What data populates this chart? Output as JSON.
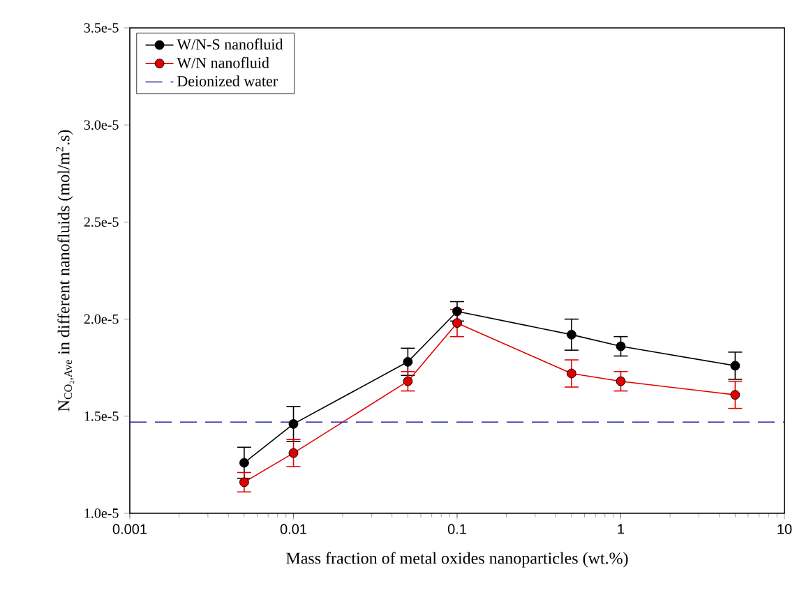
{
  "chart_data": {
    "type": "line",
    "xlabel": "Mass fraction of metal oxides nanoparticles (wt.%)",
    "ylabel": "N$_{CO₂,Ave}$ in different nanofluids (mol/m$^{2}$.s)",
    "log": "x",
    "xlim": [
      0.001,
      10
    ],
    "xticks": [
      0.001,
      0.01,
      0.1,
      1,
      10
    ],
    "ylim": [
      1e-05,
      3.5e-05
    ],
    "yticks": [
      {
        "value": 1e-05,
        "label": "1.0e-5"
      },
      {
        "value": 1.5e-05,
        "label": "1.5e-5"
      },
      {
        "value": 2e-05,
        "label": "2.0e-5"
      },
      {
        "value": 2.5e-05,
        "label": "2.5e-5"
      },
      {
        "value": 3e-05,
        "label": "3.0e-5"
      },
      {
        "value": 3.5e-05,
        "label": "3.5e-5"
      }
    ],
    "x": [
      0.005,
      0.01,
      0.05,
      0.1,
      0.5,
      1,
      5
    ],
    "grid": false,
    "legend": "top left",
    "marker": "circle",
    "series": [
      {
        "name": "W/N-S nanofluid",
        "color": "#000000",
        "values": [
          1.26e-05,
          1.46e-05,
          1.78e-05,
          2.04e-05,
          1.92e-05,
          1.86e-05,
          1.76e-05
        ],
        "errors": [
          8e-07,
          9e-07,
          7e-07,
          5e-07,
          8e-07,
          5e-07,
          7e-07
        ]
      },
      {
        "name": "W/N nanofluid",
        "color": "#e00000",
        "values": [
          1.16e-05,
          1.31e-05,
          1.68e-05,
          1.98e-05,
          1.72e-05,
          1.68e-05,
          1.61e-05
        ],
        "errors": [
          5e-07,
          7e-07,
          5e-07,
          7e-07,
          7e-07,
          5e-07,
          7e-07
        ]
      },
      {
        "name": "Deionized water",
        "color": "#2a2aa8",
        "x": [
          0.001,
          10
        ],
        "values": [
          1.47e-05,
          1.47e-05
        ],
        "marker": "none",
        "line_style": "dashed"
      }
    ]
  }
}
